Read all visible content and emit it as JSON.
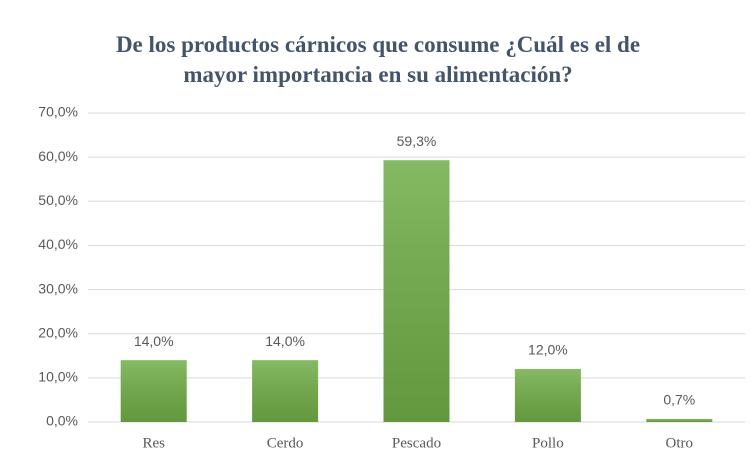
{
  "chart_data": {
    "type": "bar",
    "title": "De los productos cárnicos que consume ¿Cuál es el de mayor importancia en su alimentación?",
    "categories": [
      "Res",
      "Cerdo",
      "Pescado",
      "Pollo",
      "Otro"
    ],
    "values": [
      14,
      14,
      59.3,
      12,
      0.7
    ],
    "value_labels": [
      "14,0%",
      "14,0%",
      "59,3%",
      "12,0%",
      "0,7%"
    ],
    "color": "#70ad47",
    "ylim": [
      0,
      70
    ],
    "yticks": [
      {
        "value": 0,
        "label": "0,0%"
      },
      {
        "value": 10,
        "label": "10,0%"
      },
      {
        "value": 20,
        "label": "20,0%"
      },
      {
        "value": 30,
        "label": "30,0%"
      },
      {
        "value": 40,
        "label": "40,0%"
      },
      {
        "value": 50,
        "label": "50,0%"
      },
      {
        "value": 60,
        "label": "60,0%"
      },
      {
        "value": 70,
        "label": "70,0%"
      }
    ],
    "grid": true
  }
}
